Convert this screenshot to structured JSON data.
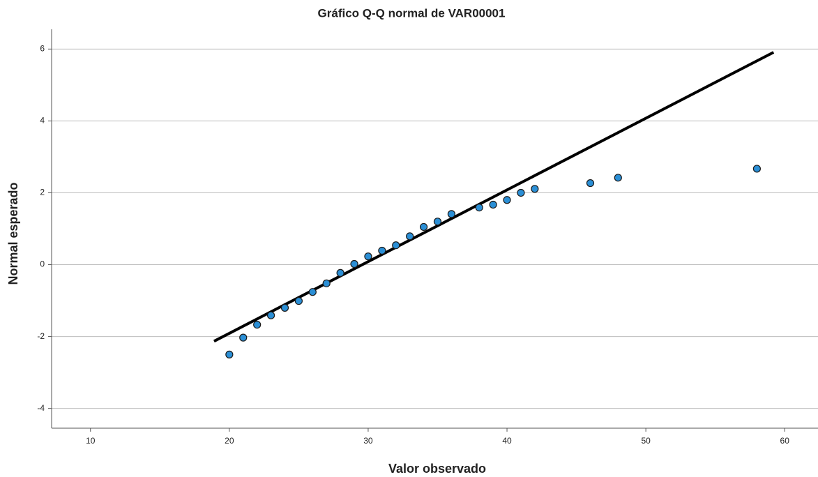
{
  "chart_data": {
    "type": "scatter",
    "title": "Gráfico Q-Q normal de VAR00001",
    "x_label": "Valor observado",
    "y_label": "Normal esperado",
    "x": [
      20,
      21,
      22,
      23,
      24,
      25,
      26,
      27,
      28,
      29,
      30,
      31,
      32,
      33,
      34,
      35,
      36,
      38,
      39,
      40,
      41,
      42,
      46,
      48,
      58
    ],
    "y": [
      -2.5,
      -2.03,
      -1.67,
      -1.41,
      -1.2,
      -1.01,
      -0.76,
      -0.52,
      -0.23,
      0.02,
      0.23,
      0.39,
      0.54,
      0.79,
      1.05,
      1.2,
      1.41,
      1.59,
      1.67,
      1.8,
      2.0,
      2.11,
      2.27,
      2.42,
      2.67
    ],
    "color": "#2b8fd6",
    "reference_line": {
      "x": [
        18.9,
        59.2
      ],
      "y": [
        -2.13,
        5.91
      ],
      "color": "#000000"
    },
    "xlim": [
      7.2,
      62.4
    ],
    "ylim": [
      -4.55,
      6.55
    ],
    "xticks": [
      10,
      20,
      30,
      40,
      50,
      60
    ],
    "yticks": [
      -4,
      -2,
      0,
      2,
      4,
      6
    ],
    "grid": "y"
  }
}
